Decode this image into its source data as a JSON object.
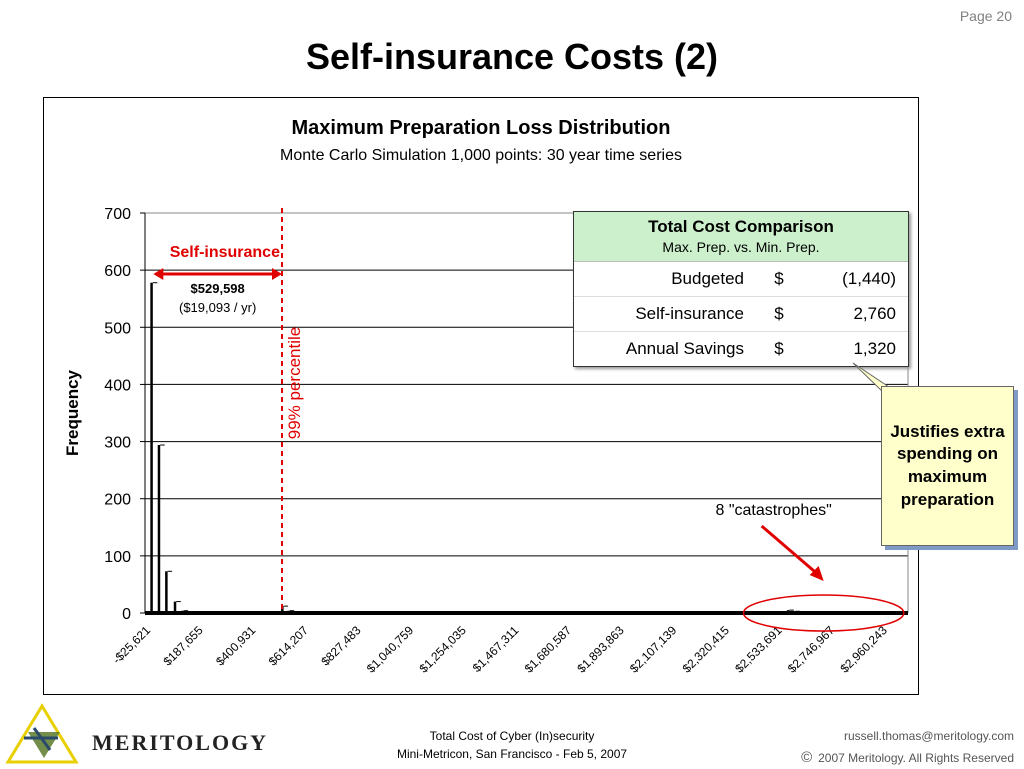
{
  "page": {
    "number_text": "Page 20",
    "title": "Self-insurance Costs (2)"
  },
  "chart_data": {
    "type": "bar",
    "title": "Maximum Preparation Loss Distribution",
    "subtitle": "Monte Carlo Simulation 1,000 points: 30 year time series",
    "ylabel": "Frequency",
    "xlabel": "",
    "ylim": [
      0,
      700
    ],
    "yticks": [
      0,
      100,
      200,
      300,
      400,
      500,
      600,
      700
    ],
    "grid": true,
    "x_start": -25621,
    "x_end": 3066881,
    "x_ticks": [
      "-$25,621",
      "$187,655",
      "$400,931",
      "$614,207",
      "$827,483",
      "$1,040,759",
      "$1,254,035",
      "$1,467,311",
      "$1,680,587",
      "$1,893,863",
      "$2,107,139",
      "$2,320,415",
      "$2,533,691",
      "$2,746,967",
      "$2,960,243"
    ],
    "tick_values": [
      -25621,
      187655,
      400931,
      614207,
      827483,
      1040759,
      1254035,
      1467311,
      1680587,
      1893863,
      2107139,
      2320415,
      2533691,
      2746967,
      2960243
    ],
    "bars": [
      {
        "x": 0,
        "y": 578
      },
      {
        "x": 30000,
        "y": 294
      },
      {
        "x": 60000,
        "y": 73
      },
      {
        "x": 95000,
        "y": 20
      },
      {
        "x": 125000,
        "y": 4
      },
      {
        "x": 530000,
        "y": 12
      },
      {
        "x": 555000,
        "y": 4
      },
      {
        "x": 580000,
        "y": 2
      },
      {
        "x": 2580000,
        "y": 5
      },
      {
        "x": 2605000,
        "y": 3
      }
    ],
    "percentile_line": {
      "x": 529598,
      "label": "99% percentile",
      "color": "#e00000"
    },
    "annotations": {
      "self_insurance_label": "Self-insurance",
      "self_insurance_amount": "$529,598",
      "self_insurance_per_year": "($19,093 / yr)",
      "catastrophes_label": "8 \"catastrophes\"",
      "catastrophes_range": [
        2400000,
        3050000
      ]
    }
  },
  "table": {
    "title": "Total Cost Comparison",
    "subtitle": "Max. Prep. vs. Min. Prep.",
    "rows": [
      {
        "label": "Budgeted",
        "currency": "$",
        "value": "(1,440)"
      },
      {
        "label": "Self-insurance",
        "currency": "$",
        "value": "2,760"
      },
      {
        "label": "Annual Savings",
        "currency": "$",
        "value": "1,320"
      }
    ]
  },
  "callout": {
    "text": "Justifies extra spending on maximum preparation"
  },
  "footer": {
    "line1": "Total Cost of Cyber (In)security",
    "line2": "Mini-Metricon, San Francisco - Feb 5, 2007",
    "email": "russell.thomas@meritology.com",
    "copyright_symbol": "©",
    "copyright": "2007 Meritology. All Rights Reserved"
  },
  "logo": {
    "text": "MERITOLOGY"
  },
  "colors": {
    "accent_red": "#e00000",
    "table_header": "#ccf0cc",
    "callout_bg": "#ffffcc",
    "logo_green": "#5a7a2a",
    "logo_yellow": "#e8d000"
  }
}
